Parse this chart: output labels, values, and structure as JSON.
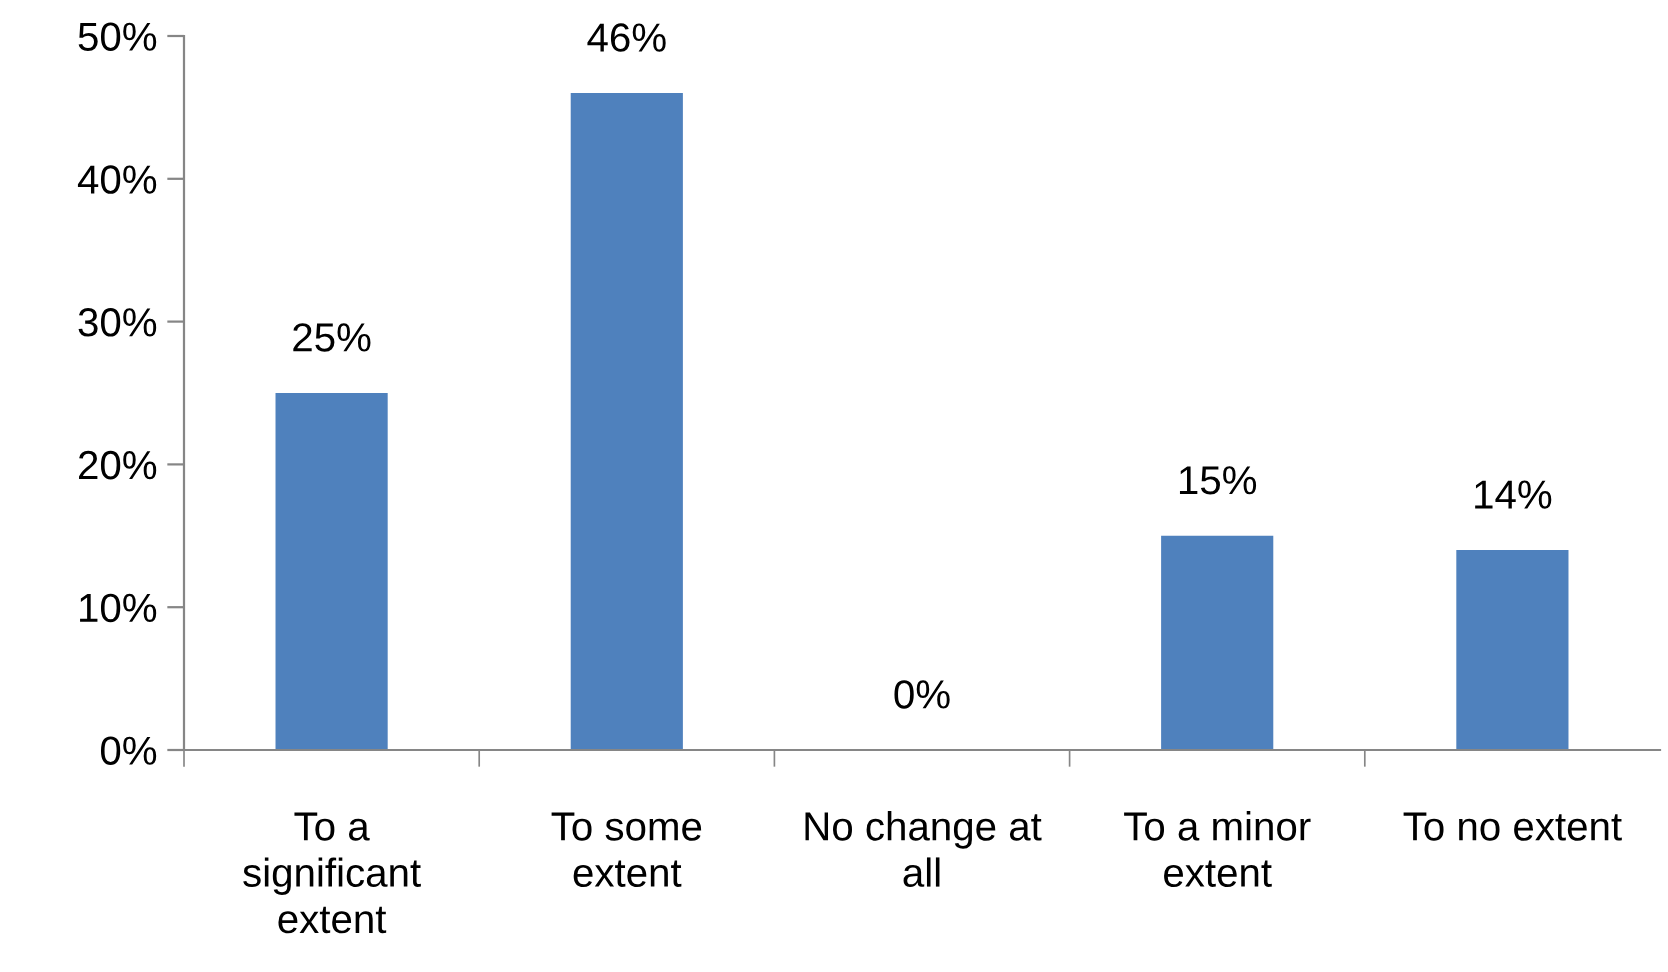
{
  "chart_data": {
    "type": "bar",
    "categories": [
      "To a\nsignificant\nextent",
      "To some\nextent",
      "No change at\nall",
      "To a minor\nextent",
      "To no extent"
    ],
    "values": [
      25,
      46,
      0,
      15,
      14
    ],
    "value_labels": [
      "25%",
      "46%",
      "0%",
      "15%",
      "14%"
    ],
    "color": "#4f81bd",
    "ylim": [
      0,
      50
    ],
    "yticks": [
      {
        "value": 0,
        "label": "0%"
      },
      {
        "value": 10,
        "label": "10%"
      },
      {
        "value": 20,
        "label": "20%"
      },
      {
        "value": 30,
        "label": "30%"
      },
      {
        "value": 40,
        "label": "40%"
      },
      {
        "value": 50,
        "label": "50%"
      }
    ],
    "grid": false,
    "legend": false
  }
}
